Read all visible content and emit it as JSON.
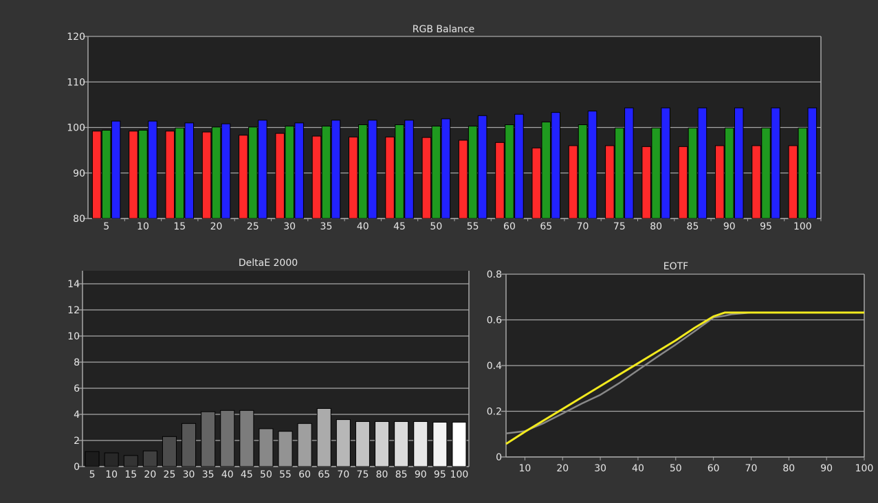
{
  "charts": {
    "rgb_balance": {
      "title": "RGB Balance",
      "colors": {
        "r": "#ff2a2a",
        "g": "#1f9a1f",
        "b": "#2222ff",
        "plot_bg": "#222222",
        "grid": "#a8a8a8"
      },
      "chart_data": {
        "type": "bar",
        "title": "RGB Balance",
        "ylim": [
          80,
          120
        ],
        "yticks": [
          80,
          90,
          100,
          110,
          120
        ],
        "categories": [
          "5",
          "10",
          "15",
          "20",
          "25",
          "30",
          "35",
          "40",
          "45",
          "50",
          "55",
          "60",
          "65",
          "70",
          "75",
          "80",
          "85",
          "90",
          "95",
          "100"
        ],
        "series": [
          {
            "color": "red",
            "values": [
              99.2,
              99.2,
              99.2,
              99.0,
              98.3,
              98.7,
              98.1,
              97.9,
              97.9,
              97.8,
              97.2,
              96.7,
              95.5,
              96.0,
              96.0,
              95.8,
              95.8,
              96.0,
              96.0,
              96.0
            ]
          },
          {
            "color": "green",
            "values": [
              99.4,
              99.4,
              99.9,
              100.1,
              100.1,
              100.3,
              100.3,
              100.6,
              100.6,
              100.3,
              100.3,
              100.6,
              101.2,
              100.6,
              99.9,
              99.9,
              99.9,
              99.9,
              99.9,
              99.9
            ]
          },
          {
            "color": "blue",
            "values": [
              101.4,
              101.4,
              101.0,
              100.8,
              101.6,
              101.0,
              101.6,
              101.6,
              101.6,
              101.9,
              102.6,
              102.9,
              103.3,
              103.6,
              104.3,
              104.3,
              104.3,
              104.3,
              104.3,
              104.3
            ]
          }
        ]
      }
    },
    "deltae": {
      "title": "DeltaE 2000",
      "colors": {
        "plot_bg": "#222222",
        "grid": "#a8a8a8"
      },
      "chart_data": {
        "type": "bar",
        "title": "DeltaE 2000",
        "ylim": [
          0,
          15
        ],
        "yticks": [
          0,
          2,
          4,
          6,
          8,
          10,
          12,
          14
        ],
        "categories": [
          "5",
          "10",
          "15",
          "20",
          "25",
          "30",
          "35",
          "40",
          "45",
          "50",
          "55",
          "60",
          "65",
          "70",
          "75",
          "80",
          "85",
          "90",
          "95",
          "100"
        ],
        "values": [
          1.15,
          1.05,
          0.85,
          1.2,
          2.3,
          3.3,
          4.2,
          4.3,
          4.3,
          2.9,
          2.7,
          3.3,
          4.45,
          3.6,
          3.45,
          3.45,
          3.45,
          3.45,
          3.4,
          3.4
        ]
      }
    },
    "eotf": {
      "title": "EOTF",
      "colors": {
        "target": "#888888",
        "measured": "#f2ea1e",
        "plot_bg": "#222222",
        "grid": "#a8a8a8"
      },
      "chart_data": {
        "type": "line",
        "title": "EOTF",
        "xlim": [
          5,
          100
        ],
        "ylim": [
          0,
          0.8
        ],
        "xticks": [
          10,
          20,
          30,
          40,
          50,
          60,
          70,
          80,
          90,
          100
        ],
        "yticks": [
          0,
          0.2,
          0.4,
          0.6,
          0.8
        ],
        "series": [
          {
            "color": "gray",
            "x": [
              5,
              10,
              15,
              20,
              25,
              30,
              35,
              40,
              45,
              50,
              55,
              60,
              63,
              65,
              70,
              75,
              80,
              85,
              90,
              95,
              100
            ],
            "y": [
              0.103,
              0.113,
              0.148,
              0.19,
              0.233,
              0.272,
              0.323,
              0.38,
              0.437,
              0.492,
              0.55,
              0.61,
              0.618,
              0.625,
              0.632,
              0.632,
              0.632,
              0.632,
              0.632,
              0.632,
              0.632
            ]
          },
          {
            "color": "yellow",
            "x": [
              5,
              10,
              15,
              20,
              25,
              30,
              35,
              40,
              45,
              50,
              55,
              60,
              63,
              65,
              70,
              75,
              80,
              85,
              90,
              95,
              100
            ],
            "y": [
              0.057,
              0.11,
              0.16,
              0.21,
              0.26,
              0.31,
              0.36,
              0.41,
              0.46,
              0.51,
              0.565,
              0.615,
              0.632,
              0.632,
              0.632,
              0.632,
              0.632,
              0.632,
              0.632,
              0.632,
              0.632
            ]
          }
        ]
      }
    }
  }
}
